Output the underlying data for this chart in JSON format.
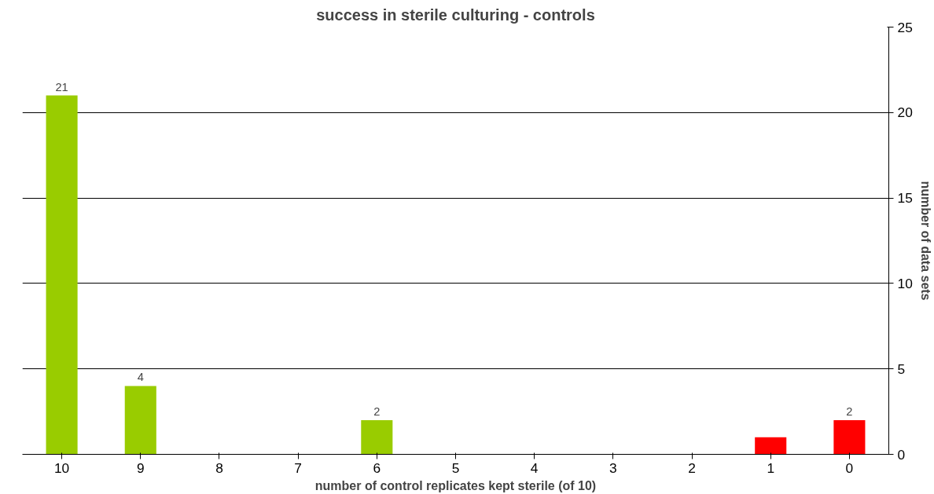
{
  "chart_data": {
    "type": "bar",
    "title": "success in sterile culturing - controls",
    "xlabel": "number of control replicates kept sterile (of 10)",
    "ylabel": "number of data sets",
    "categories": [
      "10",
      "9",
      "8",
      "7",
      "6",
      "5",
      "4",
      "3",
      "2",
      "1",
      "0"
    ],
    "values": [
      21,
      4,
      0,
      0,
      2,
      0,
      0,
      0,
      0,
      1,
      2
    ],
    "colors": [
      "#99cc00",
      "#99cc00",
      "#99cc00",
      "#99cc00",
      "#99cc00",
      "#99cc00",
      "#99cc00",
      "#99cc00",
      "#99cc00",
      "#ff0000",
      "#ff0000"
    ],
    "value_labels": [
      "21",
      "4",
      null,
      null,
      "2",
      null,
      null,
      null,
      null,
      null,
      "2"
    ],
    "ylim": [
      0,
      25
    ],
    "yticks": [
      0,
      5,
      10,
      15,
      20,
      25
    ],
    "grid": "y"
  }
}
